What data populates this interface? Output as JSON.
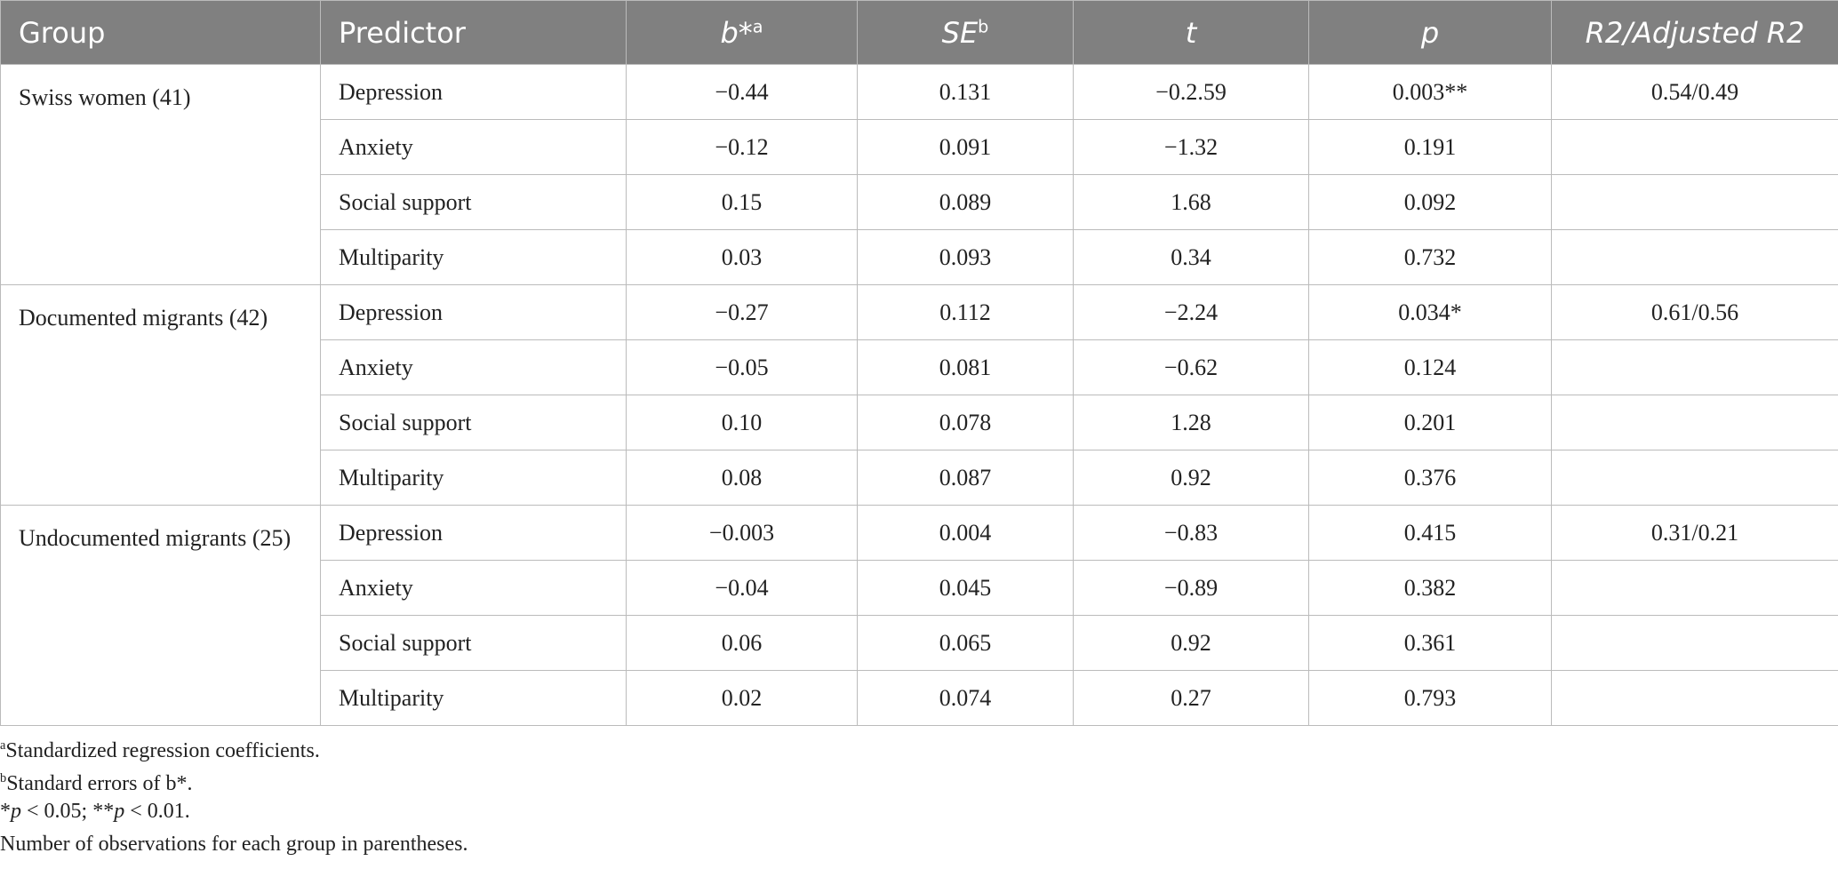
{
  "table": {
    "header": [
      {
        "text": "Group"
      },
      {
        "text": "Predictor"
      },
      {
        "text": "b*",
        "sup": "a",
        "italic": true
      },
      {
        "text": "SE",
        "sup": "b",
        "italic": true
      },
      {
        "text": "t",
        "italic": true
      },
      {
        "text": "p",
        "italic": true
      },
      {
        "text": "R2/Adjusted R2",
        "italic": true
      }
    ],
    "groups": [
      {
        "name": "Swiss women (41)",
        "r2": "0.54/0.49",
        "rows": [
          [
            "Depression",
            "−0.44",
            "0.131",
            "−0.2.59",
            "0.003**"
          ],
          [
            "Anxiety",
            "−0.12",
            "0.091",
            "−1.32",
            "0.191"
          ],
          [
            "Social support",
            "0.15",
            "0.089",
            "1.68",
            "0.092"
          ],
          [
            "Multiparity",
            "0.03",
            "0.093",
            "0.34",
            "0.732"
          ]
        ]
      },
      {
        "name": "Documented migrants (42)",
        "r2": "0.61/0.56",
        "rows": [
          [
            "Depression",
            "−0.27",
            "0.112",
            "−2.24",
            "0.034*"
          ],
          [
            "Anxiety",
            "−0.05",
            "0.081",
            "−0.62",
            "0.124"
          ],
          [
            "Social support",
            "0.10",
            "0.078",
            "1.28",
            "0.201"
          ],
          [
            "Multiparity",
            "0.08",
            "0.087",
            "0.92",
            "0.376"
          ]
        ]
      },
      {
        "name": "Undocumented migrants (25)",
        "r2": "0.31/0.21",
        "rows": [
          [
            "Depression",
            "−0.003",
            "0.004",
            "−0.83",
            "0.415"
          ],
          [
            "Anxiety",
            "−0.04",
            "0.045",
            "−0.89",
            "0.382"
          ],
          [
            "Social support",
            "0.06",
            "0.065",
            "0.92",
            "0.361"
          ],
          [
            "Multiparity",
            "0.02",
            "0.074",
            "0.27",
            "0.793"
          ]
        ]
      }
    ]
  },
  "footnotes": [
    [
      {
        "text": "a",
        "sup": true
      },
      {
        "text": "Standardized regression coefficients."
      }
    ],
    [
      {
        "text": "b",
        "sup": true
      },
      {
        "text": "Standard errors of b*."
      }
    ],
    [
      {
        "text": "*"
      },
      {
        "text": "p",
        "italic": true
      },
      {
        "text": " < 0.05; **"
      },
      {
        "text": "p",
        "italic": true
      },
      {
        "text": " < 0.01."
      }
    ],
    [
      {
        "text": "Number of observations for each group in parentheses."
      }
    ]
  ]
}
